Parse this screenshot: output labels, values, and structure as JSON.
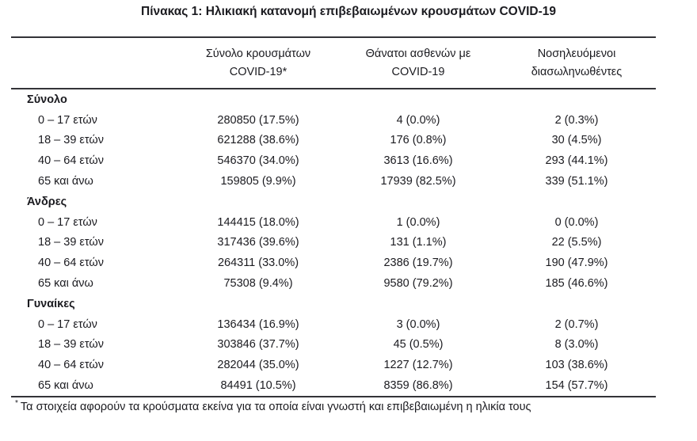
{
  "title": "Πίνακας 1: Ηλικιακή κατανομή επιβεβαιωμένων κρουσμάτων COVID-19",
  "colors": {
    "text": "#1b1b20",
    "rule": "#333338"
  },
  "table": {
    "columns": [
      {
        "line1": "Σύνολο κρουσμάτων",
        "line2": "COVID-19*"
      },
      {
        "line1": "Θάνατοι ασθενών με",
        "line2": "COVID-19"
      },
      {
        "line1": "Νοσηλευόμενοι",
        "line2": "διασωληνωθέντες"
      }
    ],
    "sections": [
      {
        "name": "Σύνολο",
        "rows": [
          {
            "label": "0 – 17 ετών",
            "cases": "280850 (17.5%)",
            "deaths": "4 (0.0%)",
            "intubated": "2 (0.3%)"
          },
          {
            "label": "18 – 39 ετών",
            "cases": "621288 (38.6%)",
            "deaths": "176 (0.8%)",
            "intubated": "30 (4.5%)"
          },
          {
            "label": "40 – 64 ετών",
            "cases": "546370 (34.0%)",
            "deaths": "3613 (16.6%)",
            "intubated": "293 (44.1%)"
          },
          {
            "label": "65 και άνω",
            "cases": "159805 (9.9%)",
            "deaths": "17939 (82.5%)",
            "intubated": "339 (51.1%)"
          }
        ]
      },
      {
        "name": "Άνδρες",
        "rows": [
          {
            "label": "0 – 17 ετών",
            "cases": "144415 (18.0%)",
            "deaths": "1 (0.0%)",
            "intubated": "0 (0.0%)"
          },
          {
            "label": "18 – 39 ετών",
            "cases": "317436 (39.6%)",
            "deaths": "131 (1.1%)",
            "intubated": "22 (5.5%)"
          },
          {
            "label": "40 – 64 ετών",
            "cases": "264311 (33.0%)",
            "deaths": "2386 (19.7%)",
            "intubated": "190 (47.9%)"
          },
          {
            "label": "65 και άνω",
            "cases": "75308 (9.4%)",
            "deaths": "9580 (79.2%)",
            "intubated": "185 (46.6%)"
          }
        ]
      },
      {
        "name": "Γυναίκες",
        "rows": [
          {
            "label": "0 – 17 ετών",
            "cases": "136434 (16.9%)",
            "deaths": "3 (0.0%)",
            "intubated": "2 (0.7%)"
          },
          {
            "label": "18 – 39 ετών",
            "cases": "303846 (37.7%)",
            "deaths": "45 (0.5%)",
            "intubated": "8 (3.0%)"
          },
          {
            "label": "40 – 64 ετών",
            "cases": "282044 (35.0%)",
            "deaths": "1227 (12.7%)",
            "intubated": "103 (38.6%)"
          },
          {
            "label": "65 και άνω",
            "cases": "84491 (10.5%)",
            "deaths": "8359 (86.8%)",
            "intubated": "154 (57.7%)"
          }
        ]
      }
    ]
  },
  "footnote": {
    "marker": "*",
    "text": "Τα στοιχεία αφορούν τα κρούσματα εκείνα για τα οποία είναι γνωστή και επιβεβαιωμένη η ηλικία τους"
  }
}
